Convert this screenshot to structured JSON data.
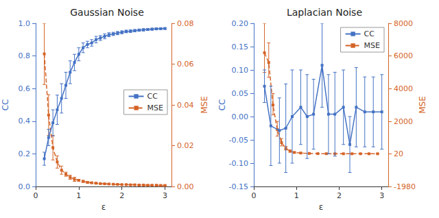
{
  "chart_data": [
    {
      "type": "line",
      "title": "Gaussian Noise",
      "x_label": "ε",
      "y_label": "CC",
      "y2_label": "MSE",
      "xlim": [
        0,
        3.15
      ],
      "xticks": [
        0,
        1,
        2,
        3
      ],
      "ylim": [
        0,
        1.0
      ],
      "yticks": [
        {
          "value": 0,
          "label": "0.0"
        },
        0.2,
        0.4,
        0.6,
        0.8,
        {
          "value": 1.0,
          "label": "1.0"
        }
      ],
      "y2lim": [
        0,
        0.08
      ],
      "y2ticks": [
        {
          "value": 0,
          "label": "0.00"
        },
        0.02,
        0.04,
        0.06,
        0.08
      ],
      "grid": false,
      "legend": "center right",
      "series": [
        {
          "name": "CC",
          "color": "#4472C4",
          "marker": "square",
          "line_style": "solid",
          "x": [
            0.2,
            0.3,
            0.4,
            0.5,
            0.6,
            0.7,
            0.8,
            0.9,
            1.0,
            1.1,
            1.2,
            1.3,
            1.4,
            1.5,
            1.6,
            1.7,
            1.8,
            1.9,
            2.0,
            2.1,
            2.2,
            2.3,
            2.4,
            2.5,
            2.6,
            2.7,
            2.8,
            2.9,
            3.0
          ],
          "values": [
            0.17,
            0.3,
            0.39,
            0.47,
            0.54,
            0.62,
            0.7,
            0.76,
            0.81,
            0.85,
            0.87,
            0.88,
            0.9,
            0.91,
            0.92,
            0.93,
            0.935,
            0.94,
            0.945,
            0.95,
            0.952,
            0.955,
            0.958,
            0.96,
            0.962,
            0.964,
            0.966,
            0.967,
            0.968
          ],
          "yerr": [
            0.04,
            0.05,
            0.08,
            0.09,
            0.09,
            0.08,
            0.07,
            0.05,
            0.04,
            0.03,
            0.02,
            0.02,
            0.02,
            0.015,
            0.015,
            0.012,
            0.01,
            0.01,
            0.009,
            0.008,
            0.008,
            0.007,
            0.007,
            0.007,
            0.006,
            0.006,
            0.006,
            0.005,
            0.005
          ]
        },
        {
          "name": "MSE",
          "axis": "y2",
          "color": "#D46327",
          "marker": "square",
          "line_style": "dashed",
          "x": [
            0.2,
            0.3,
            0.4,
            0.5,
            0.6,
            0.7,
            0.8,
            0.9,
            1.0,
            1.1,
            1.2,
            1.3,
            1.4,
            1.5,
            1.6,
            1.7,
            1.8,
            1.9,
            2.0,
            2.1,
            2.2,
            2.3,
            2.4,
            2.5,
            2.6,
            2.7,
            2.8,
            2.9,
            3.0
          ],
          "values": [
            0.065,
            0.035,
            0.019,
            0.012,
            0.008,
            0.006,
            0.0045,
            0.0035,
            0.003,
            0.0025,
            0.002,
            0.0018,
            0.0016,
            0.0014,
            0.0013,
            0.0012,
            0.0011,
            0.001,
            0.0009,
            0.0009,
            0.0008,
            0.0008,
            0.0007,
            0.0007,
            0.0006,
            0.0006,
            0.0006,
            0.0005,
            0.0005
          ],
          "yerr_lo": [
            0.015,
            0.01,
            0.006,
            0.003,
            0.002,
            0.001,
            0.001,
            0.001,
            0.0005,
            0.0005,
            0.0004,
            0.0003,
            0.0003,
            0.0002,
            0.0002,
            0.0002,
            0.0001,
            0.0001,
            0.0001,
            0.0001,
            0.0001,
            0.0001,
            0.0001,
            0.0001,
            0.0001,
            0.0001,
            0.0001,
            0.0001,
            0.0001
          ],
          "yerr_hi": [
            0.015,
            0.01,
            0.006,
            0.003,
            0.002,
            0.001,
            0.001,
            0.001,
            0.0005,
            0.0005,
            0.0004,
            0.0003,
            0.0003,
            0.0002,
            0.0002,
            0.0002,
            0.0001,
            0.0001,
            0.0001,
            0.0001,
            0.0001,
            0.0001,
            0.0001,
            0.0001,
            0.0001,
            0.0001,
            0.0001,
            0.0001,
            0.0001
          ]
        }
      ]
    },
    {
      "type": "line",
      "title": "Laplacian Noise",
      "x_label": "ε",
      "y_label": "CC",
      "y2_label": "MSE",
      "xlim": [
        0,
        3.15
      ],
      "xticks": [
        0,
        1,
        2,
        3
      ],
      "ylim": [
        -0.15,
        0.2
      ],
      "yticks": [
        -0.15,
        {
          "value": -0.1,
          "label": "-0.10"
        },
        -0.05,
        {
          "value": 0,
          "label": "0.00"
        },
        0.05,
        {
          "value": 0.1,
          "label": "0.10"
        },
        0.15,
        {
          "value": 0.2,
          "label": "0.20"
        }
      ],
      "y2lim": [
        -1980,
        8000
      ],
      "y2ticks": [
        -1980,
        20,
        2000,
        4000,
        6000,
        8000
      ],
      "grid": false,
      "legend": "upper right",
      "series": [
        {
          "name": "CC",
          "color": "#4472C4",
          "marker": "square",
          "line_style": "solid",
          "x": [
            0.25,
            0.4,
            0.6,
            0.75,
            0.9,
            1.1,
            1.25,
            1.4,
            1.6,
            1.75,
            1.9,
            2.1,
            2.25,
            2.4,
            2.6,
            2.8,
            3.0
          ],
          "values": [
            0.065,
            -0.02,
            -0.03,
            -0.025,
            0.0,
            0.02,
            0.0,
            0.005,
            0.11,
            0.005,
            0.005,
            0.02,
            -0.06,
            0.02,
            0.01,
            0.01,
            0.01
          ],
          "yerr": [
            0.035,
            0.085,
            0.07,
            0.095,
            0.1,
            0.08,
            0.09,
            0.075,
            0.09,
            0.085,
            0.09,
            0.08,
            0.06,
            0.085,
            0.075,
            0.075,
            0.08
          ]
        },
        {
          "name": "MSE",
          "axis": "y2",
          "color": "#D46327",
          "marker": "square",
          "line_style": "dashed",
          "x": [
            0.25,
            0.35,
            0.45,
            0.55,
            0.65,
            0.75,
            0.85,
            0.95,
            1.1,
            1.3,
            1.5,
            1.7,
            1.9,
            2.1,
            2.3,
            2.5,
            2.7,
            2.9
          ],
          "values": [
            6200,
            5600,
            3000,
            1500,
            700,
            350,
            180,
            100,
            65,
            40,
            28,
            23,
            21,
            21,
            20,
            20,
            20,
            20
          ],
          "yerr_lo": [
            1200,
            900,
            600,
            400,
            200,
            100,
            60,
            30,
            15,
            10,
            5,
            3,
            2,
            2,
            2,
            2,
            2,
            2
          ],
          "yerr_hi": [
            1800,
            1200,
            700,
            500,
            250,
            120,
            70,
            35,
            18,
            12,
            6,
            4,
            2,
            2,
            2,
            2,
            2,
            2
          ]
        }
      ]
    }
  ]
}
